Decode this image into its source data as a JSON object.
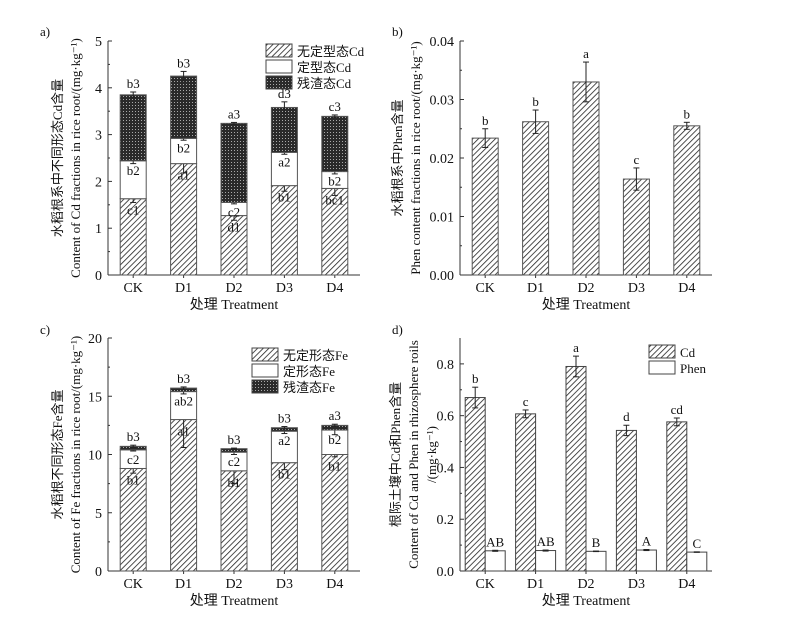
{
  "chart_data": [
    {
      "panel": "a)",
      "type": "bar",
      "stacked": true,
      "categories": [
        "CK",
        "D1",
        "D2",
        "D3",
        "D4"
      ],
      "xlabel": "处理 Treatment",
      "ylabel_cn": "水稻根系中不同形态Cd含量",
      "ylabel_en": "Content of Cd fractions in rice root/(mg·kg⁻¹)",
      "ylim": [
        0,
        5
      ],
      "yticks": [
        "0",
        "1",
        "2",
        "3",
        "4",
        "5"
      ],
      "ytick_values": [
        0,
        1,
        2,
        3,
        4,
        5
      ],
      "legend_position": "top-right",
      "series": [
        {
          "name": "无定型态Cd",
          "pattern": "hatch",
          "values": [
            1.63,
            2.38,
            1.27,
            1.91,
            1.85
          ],
          "errors": [
            0.08,
            0.2,
            0.1,
            0.12,
            0.15
          ],
          "labels": [
            "c1",
            "a1",
            "d1",
            "b1",
            "bc1"
          ]
        },
        {
          "name": "定型态Cd",
          "pattern": "white",
          "values": [
            0.81,
            0.54,
            0.28,
            0.71,
            0.36
          ],
          "errors": [
            0.06,
            0.04,
            0.03,
            0.04,
            0.05
          ],
          "labels": [
            "b2",
            "b2",
            "c2",
            "a2",
            "b2"
          ]
        },
        {
          "name": "残渣态Cd",
          "pattern": "dots",
          "values": [
            1.41,
            1.33,
            1.69,
            0.96,
            1.18
          ],
          "errors": [
            0.06,
            0.1,
            0.02,
            0.12,
            0.03
          ],
          "labels": [
            "b3",
            "b3",
            "a3",
            "d3",
            "c3"
          ]
        }
      ]
    },
    {
      "panel": "b)",
      "type": "bar",
      "categories": [
        "CK",
        "D1",
        "D2",
        "D3",
        "D4"
      ],
      "xlabel": "处理 Treatment",
      "ylabel_cn": "水稻根系中Phen含量",
      "ylabel_en": "Phen content fractions in rice root/(mg·kg⁻¹)",
      "ylim": [
        0,
        0.04
      ],
      "yticks": [
        "0.00",
        "0.01",
        "0.02",
        "0.03",
        "0.04"
      ],
      "ytick_values": [
        0,
        0.01,
        0.02,
        0.03,
        0.04
      ],
      "series": [
        {
          "name": "Phen",
          "pattern": "hatch",
          "values": [
            0.0234,
            0.0262,
            0.033,
            0.0164,
            0.0255
          ],
          "errors": [
            0.0016,
            0.002,
            0.0034,
            0.0019,
            0.0006
          ],
          "labels": [
            "b",
            "b",
            "a",
            "c",
            "b"
          ]
        }
      ]
    },
    {
      "panel": "c)",
      "type": "bar",
      "stacked": true,
      "categories": [
        "CK",
        "D1",
        "D2",
        "D3",
        "D4"
      ],
      "xlabel": "处理 Treatment",
      "ylabel_cn": "水稻根不同形态Fe含量",
      "ylabel_en": "Content of Fe fractions in rice root/(mg·kg⁻¹)",
      "ylim": [
        0,
        20
      ],
      "yticks": [
        "0",
        "5",
        "10",
        "15",
        "20"
      ],
      "ytick_values": [
        0,
        5,
        10,
        15,
        20
      ],
      "legend_position": "top-right",
      "series": [
        {
          "name": "无定形态Fe",
          "pattern": "hatch",
          "values": [
            8.8,
            13.0,
            8.6,
            9.3,
            10.0
          ],
          "errors": [
            0.4,
            2.4,
            1.1,
            0.6,
            0.2
          ],
          "labels": [
            "b1",
            "a1",
            "b1",
            "b1",
            "b1"
          ]
        },
        {
          "name": "定形态Fe",
          "pattern": "white",
          "values": [
            1.6,
            2.4,
            1.6,
            2.7,
            2.1
          ],
          "errors": [
            0.1,
            0.2,
            0.2,
            0.2,
            0.4
          ],
          "labels": [
            "c2",
            "ab2",
            "c2",
            "a2",
            "b2"
          ]
        },
        {
          "name": "残渣态Fe",
          "pattern": "dots",
          "values": [
            0.3,
            0.3,
            0.3,
            0.3,
            0.4
          ],
          "errors": [
            0.1,
            0.1,
            0.05,
            0.1,
            0.1
          ],
          "labels": [
            "b3",
            "b3",
            "b3",
            "b3",
            "a3"
          ]
        }
      ]
    },
    {
      "panel": "d)",
      "type": "bar",
      "categories": [
        "CK",
        "D1",
        "D2",
        "D3",
        "D4"
      ],
      "xlabel": "处理 Treatment",
      "ylabel_cn": "根际土壤中Cd和Phen含量",
      "ylabel_en": "Content of Cd and Phen in rhizosphere roils",
      "ylabel_unit": "/(mg·kg⁻¹)",
      "ylim": [
        0,
        0.9
      ],
      "yticks": [
        "0.0",
        "0.2",
        "0.4",
        "0.6",
        "0.8"
      ],
      "ytick_values": [
        0,
        0.2,
        0.4,
        0.6,
        0.8
      ],
      "legend_position": "top-right",
      "series": [
        {
          "name": "Cd",
          "pattern": "hatch",
          "values": [
            0.67,
            0.607,
            0.79,
            0.543,
            0.576
          ],
          "errors": [
            0.04,
            0.015,
            0.04,
            0.02,
            0.015
          ],
          "labels": [
            "b",
            "c",
            "a",
            "d",
            "cd"
          ]
        },
        {
          "name": "Phen",
          "pattern": "white",
          "values": [
            0.078,
            0.079,
            0.076,
            0.081,
            0.073
          ],
          "errors": [
            0.002,
            0.002,
            0.001,
            0.002,
            0.001
          ],
          "labels": [
            "AB",
            "AB",
            "B",
            "A",
            "C"
          ]
        }
      ]
    }
  ]
}
